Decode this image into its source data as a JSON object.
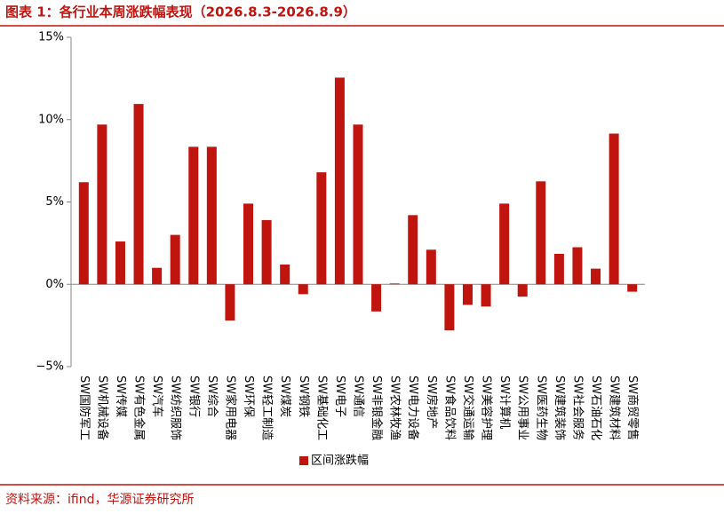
{
  "chart_data": {
    "type": "bar",
    "title": "图表 1：各行业本周涨跌幅表现（2026.8.3-2026.8.9）",
    "source": "资料来源：ifind，华源证券研究所",
    "categories": [
      "SW国防军工",
      "SW机械设备",
      "SW传媒",
      "SW有色金属",
      "SW汽车",
      "SW纺织服饰",
      "SW银行",
      "SW综合",
      "SW家用电器",
      "SW环保",
      "SW轻工制造",
      "SW煤炭",
      "SW钢铁",
      "SW基础化工",
      "SW电子",
      "SW通信",
      "SW非银金融",
      "SW农林牧渔",
      "SW电力设备",
      "SW房地产",
      "SW食品饮料",
      "SW交通运输",
      "SW美容护理",
      "SW计算机",
      "SW公用事业",
      "SW医药生物",
      "SW建筑装饰",
      "SW社会服务",
      "SW石油石化",
      "SW建筑材料",
      "SW商贸零售"
    ],
    "series": [
      {
        "name": "区间涨跌幅",
        "color": "#c0140f",
        "values": [
          6.2,
          9.7,
          2.6,
          10.95,
          1.0,
          3.0,
          8.35,
          8.35,
          -2.2,
          4.9,
          3.9,
          1.2,
          -0.6,
          6.8,
          12.55,
          9.7,
          -1.65,
          0.05,
          4.2,
          2.1,
          -2.8,
          -1.25,
          -1.35,
          4.9,
          -0.75,
          6.25,
          1.85,
          2.25,
          0.95,
          9.15,
          -0.45
        ]
      }
    ],
    "ylim": [
      -5,
      15
    ],
    "yticks": [
      {
        "value": -5,
        "label": "−5%"
      },
      {
        "value": 0,
        "label": "0%"
      },
      {
        "value": 5,
        "label": "5%"
      },
      {
        "value": 10,
        "label": "10%"
      },
      {
        "value": 15,
        "label": "15%"
      }
    ],
    "legend": "bottom"
  }
}
